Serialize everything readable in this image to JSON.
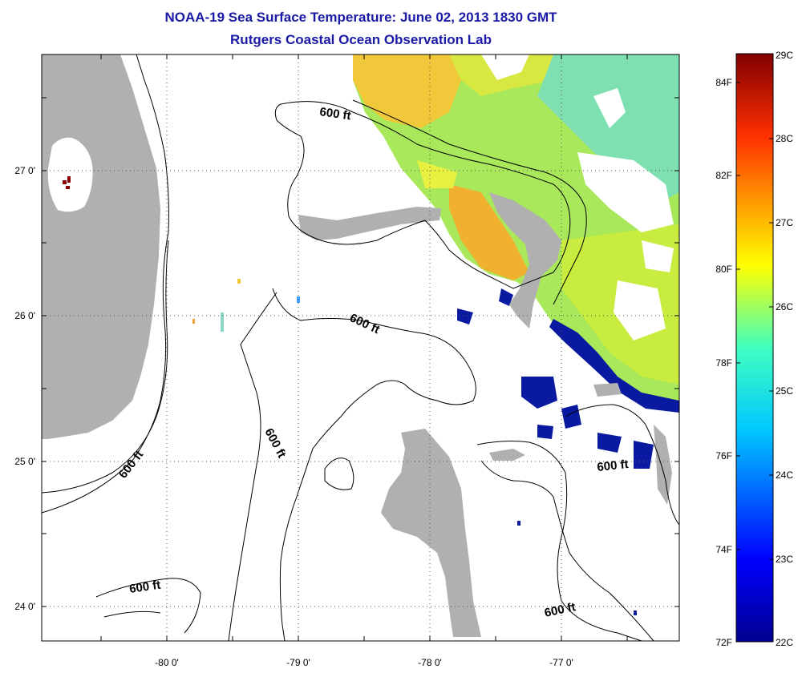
{
  "header": {
    "title": "NOAA-19 Sea Surface Temperature:  June 02, 2013 1830 GMT",
    "subtitle": "Rutgers Coastal Ocean Observation Lab"
  },
  "map": {
    "lat_labels": [
      "27 0'",
      "26 0'",
      "25 0'",
      "24 0'"
    ],
    "lon_labels": [
      "-80 0'",
      "-79 0'",
      "-78 0'",
      "-77 0'"
    ],
    "contour_labels": [
      "600 ft",
      "600 ft",
      "600 ft",
      "600 ft",
      "600 ft",
      "600 ft",
      "600 ft"
    ],
    "colors": {
      "land": "#b0b0b0",
      "contour": "#000000",
      "grid": "#555555"
    }
  },
  "colorbar": {
    "celsius": [
      "29C",
      "28C",
      "27C",
      "26C",
      "25C",
      "24C",
      "23C",
      "22C"
    ],
    "fahrenheit": [
      "84F",
      "82F",
      "80F",
      "78F",
      "76F",
      "74F",
      "72F"
    ]
  }
}
